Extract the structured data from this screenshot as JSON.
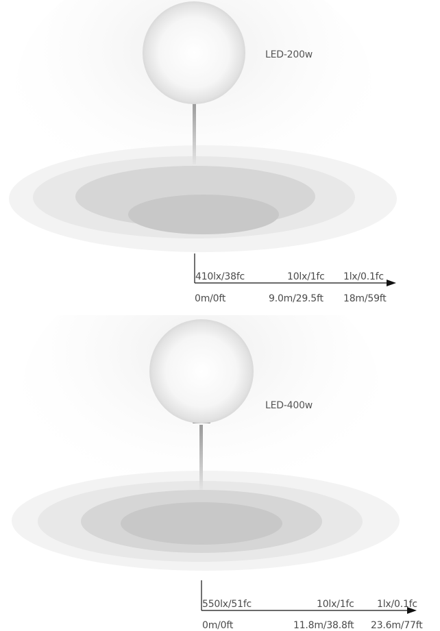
{
  "diagrams": [
    {
      "model": "LED-200w",
      "lux_labels": [
        "410lx/38fc",
        "10lx/1fc",
        "1lx/0.1fc"
      ],
      "distance_labels": [
        "0m/0ft",
        "9.0m/29.5ft",
        "18m/59ft"
      ]
    },
    {
      "model": "LED-400w",
      "lux_labels": [
        "550lx/51fc",
        "10lx/1fc",
        "1lx/0.1fc"
      ],
      "distance_labels": [
        "0m/0ft",
        "11.8m/38.8ft",
        "23.6m/77ft"
      ]
    }
  ],
  "colors": {
    "ring_outer": "#f3f3f3",
    "ring_mid": "#e8e8e8",
    "ring_inner": "#d6d6d6",
    "ring_core": "#c8c8c8",
    "axis": "#111111"
  }
}
